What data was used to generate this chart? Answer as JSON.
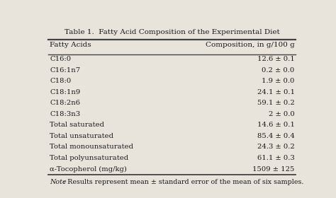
{
  "title": "Table 1.  Fatty Acid Composition of the Experimental Diet",
  "col1_header": "Fatty Acids",
  "col2_header": "Composition, in g/100 g",
  "rows": [
    [
      "C16:0",
      "12.6 ± 0.1"
    ],
    [
      "C16:1n7",
      "0.2 ± 0.0"
    ],
    [
      "C18:0",
      "1.9 ± 0.0"
    ],
    [
      "C18:1n9",
      "24.1 ± 0.1"
    ],
    [
      "C18:2n6",
      "59.1 ± 0.2"
    ],
    [
      "C18:3n3",
      "2 ± 0.0"
    ],
    [
      "Total saturated",
      "14.6 ± 0.1"
    ],
    [
      "Total unsaturated",
      "85.4 ± 0.4"
    ],
    [
      "Total monounsaturated",
      "24.3 ± 0.2"
    ],
    [
      "Total polyunsaturated",
      "61.1 ± 0.3"
    ],
    [
      "α-Tocopherol (mg/kg)",
      "1509 ± 125"
    ]
  ],
  "note_italic": "Note",
  "note_rest": ": Results represent mean ± standard error of the mean of six samples.",
  "bg_color": "#e8e4dc",
  "text_color": "#1a1a1a",
  "line_color": "#444444",
  "font_size": 7.2,
  "header_font_size": 7.5,
  "title_font_size": 7.5,
  "note_font_size": 6.8
}
